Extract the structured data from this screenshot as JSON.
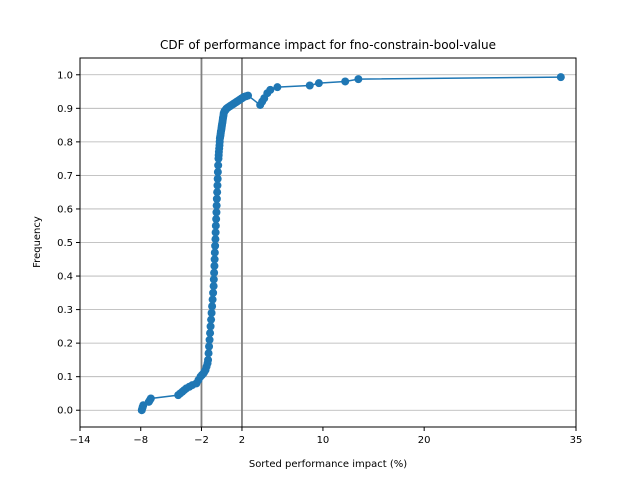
{
  "chart_data": {
    "type": "line",
    "title": "CDF of performance impact for fno-constrain-bool-value",
    "xlabel": "Sorted performance impact (%)",
    "ylabel": "Frequency",
    "xlim": [
      -14,
      35
    ],
    "ylim": [
      -0.05,
      1.05
    ],
    "x_ticks": [
      -14,
      -8,
      -2,
      2,
      10,
      20,
      35
    ],
    "x_tick_labels": [
      "−14",
      "−8",
      "−2",
      "2",
      "10",
      "20",
      "35"
    ],
    "y_ticks": [
      0.0,
      0.1,
      0.2,
      0.3,
      0.4,
      0.5,
      0.6,
      0.7,
      0.8,
      0.9,
      1.0
    ],
    "y_tick_labels": [
      "0.0",
      "0.1",
      "0.2",
      "0.3",
      "0.4",
      "0.5",
      "0.6",
      "0.7",
      "0.8",
      "0.9",
      "1.0"
    ],
    "grid": "horizontal",
    "vertical_lines": [
      -2,
      2
    ],
    "line_color": "#1f77b4",
    "vline_color": "#808080",
    "grid_color": "#b0b0b0",
    "series": [
      {
        "x": [
          -7.9,
          -7.85,
          -7.8,
          -7.75,
          -7.2,
          -7.1,
          -7.0,
          -4.3,
          -4.1,
          -3.9,
          -3.7,
          -3.5,
          -3.2,
          -2.9,
          -2.5,
          -2.3,
          -2.1,
          -1.95,
          -1.8,
          -1.7,
          -1.6,
          -1.5,
          -1.4,
          -1.35,
          -1.3,
          -1.25,
          -1.2,
          -1.15,
          -1.1,
          -1.05,
          -1.0,
          -0.95,
          -0.9,
          -0.85,
          -0.8,
          -0.78,
          -0.75,
          -0.72,
          -0.7,
          -0.68,
          -0.65,
          -0.62,
          -0.6,
          -0.58,
          -0.55,
          -0.52,
          -0.5,
          -0.48,
          -0.45,
          -0.42,
          -0.4,
          -0.38,
          -0.35,
          -0.32,
          -0.3,
          -0.28,
          -0.25,
          -0.22,
          -0.2,
          -0.18,
          -0.15,
          -0.12,
          -0.1,
          -0.08,
          -0.05,
          -0.02,
          0.0,
          0.02,
          0.05,
          0.08,
          0.1,
          0.12,
          0.15,
          0.18,
          0.2,
          0.25,
          0.3,
          0.35,
          0.4,
          0.45,
          0.5,
          0.6,
          0.7,
          0.8,
          0.9,
          1.0,
          1.1,
          1.2,
          1.3,
          1.4,
          1.5,
          1.6,
          1.7,
          1.8,
          1.9,
          2.0,
          2.1,
          2.2,
          2.4,
          2.6,
          3.8,
          4.0,
          4.2,
          4.5,
          4.8,
          5.5,
          8.7,
          9.6,
          12.2,
          13.5,
          33.5
        ],
        "y": [
          0.0,
          0.005,
          0.01,
          0.015,
          0.025,
          0.03,
          0.035,
          0.045,
          0.05,
          0.055,
          0.06,
          0.065,
          0.07,
          0.075,
          0.08,
          0.09,
          0.1,
          0.105,
          0.11,
          0.115,
          0.12,
          0.13,
          0.14,
          0.15,
          0.17,
          0.19,
          0.21,
          0.23,
          0.25,
          0.27,
          0.29,
          0.31,
          0.33,
          0.35,
          0.37,
          0.39,
          0.41,
          0.43,
          0.45,
          0.47,
          0.49,
          0.51,
          0.53,
          0.55,
          0.57,
          0.59,
          0.61,
          0.63,
          0.65,
          0.67,
          0.69,
          0.71,
          0.73,
          0.75,
          0.76,
          0.77,
          0.78,
          0.79,
          0.8,
          0.81,
          0.815,
          0.82,
          0.825,
          0.83,
          0.835,
          0.84,
          0.845,
          0.85,
          0.855,
          0.86,
          0.865,
          0.87,
          0.875,
          0.88,
          0.885,
          0.89,
          0.892,
          0.894,
          0.896,
          0.898,
          0.9,
          0.902,
          0.904,
          0.906,
          0.908,
          0.91,
          0.912,
          0.914,
          0.916,
          0.918,
          0.92,
          0.922,
          0.924,
          0.926,
          0.928,
          0.93,
          0.932,
          0.934,
          0.936,
          0.938,
          0.91,
          0.92,
          0.93,
          0.945,
          0.955,
          0.963,
          0.968,
          0.975,
          0.98,
          0.987,
          0.993
        ]
      }
    ]
  }
}
